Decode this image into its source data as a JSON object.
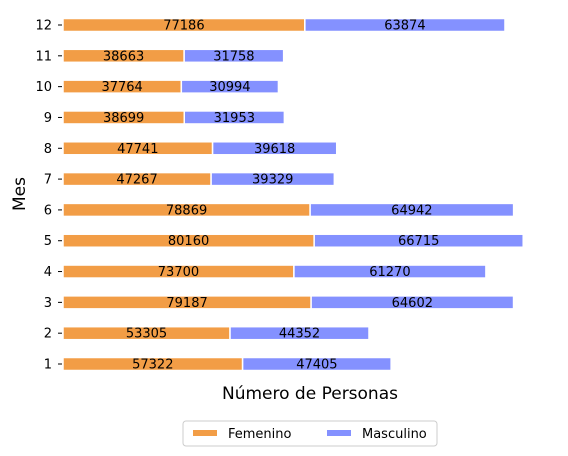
{
  "chart_data": {
    "type": "bar",
    "orientation": "horizontal",
    "stacked": true,
    "categories": [
      "1",
      "2",
      "3",
      "4",
      "5",
      "6",
      "7",
      "8",
      "9",
      "10",
      "11",
      "12"
    ],
    "series": [
      {
        "name": "Femenino",
        "color": "#F29D46",
        "values": [
          57322,
          53305,
          79187,
          73700,
          80160,
          78869,
          47267,
          47741,
          38699,
          37764,
          38663,
          77186
        ]
      },
      {
        "name": "Masculino",
        "color": "#8491FF",
        "values": [
          47405,
          44352,
          64602,
          61270,
          66715,
          64942,
          39329,
          39618,
          31953,
          30994,
          31758,
          63874
        ]
      }
    ],
    "xlabel": "Número de Personas",
    "ylabel": "Mes",
    "xlim": [
      0,
      150000
    ],
    "grid": false,
    "data_labels": true,
    "legend_position": "bottom-center"
  }
}
